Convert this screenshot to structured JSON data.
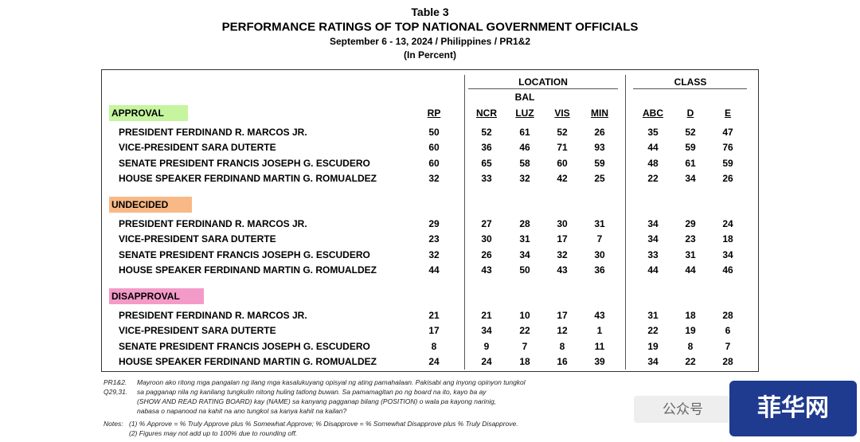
{
  "header": {
    "table_no": "Table 3",
    "title": "PERFORMANCE RATINGS OF TOP NATIONAL GOVERNMENT OFFICIALS",
    "subtitle": "September 6 - 13, 2024 / Philippines / PR1&2",
    "unit": "(In Percent)"
  },
  "table": {
    "groups": {
      "location": "LOCATION",
      "bal": "BAL",
      "class": "CLASS"
    },
    "columns": [
      "RP",
      "NCR",
      "LUZ",
      "VIS",
      "MIN",
      "ABC",
      "D",
      "E"
    ],
    "sections": [
      {
        "label": "APPROVAL",
        "rows": [
          {
            "name": "PRESIDENT FERDINAND R. MARCOS JR.",
            "values": [
              50,
              52,
              61,
              52,
              26,
              35,
              52,
              47
            ]
          },
          {
            "name": "VICE-PRESIDENT SARA DUTERTE",
            "values": [
              60,
              36,
              46,
              71,
              93,
              44,
              59,
              76
            ]
          },
          {
            "name": "SENATE PRESIDENT FRANCIS JOSEPH G. ESCUDERO",
            "values": [
              60,
              65,
              58,
              60,
              59,
              48,
              61,
              59
            ]
          },
          {
            "name": "HOUSE SPEAKER FERDINAND MARTIN G. ROMUALDEZ",
            "values": [
              32,
              33,
              32,
              42,
              25,
              22,
              34,
              26
            ]
          }
        ]
      },
      {
        "label": "UNDECIDED",
        "rows": [
          {
            "name": "PRESIDENT FERDINAND R. MARCOS JR.",
            "values": [
              29,
              27,
              28,
              30,
              31,
              34,
              29,
              24
            ]
          },
          {
            "name": "VICE-PRESIDENT SARA DUTERTE",
            "values": [
              23,
              30,
              31,
              17,
              7,
              34,
              23,
              18
            ]
          },
          {
            "name": "SENATE PRESIDENT FRANCIS JOSEPH G. ESCUDERO",
            "values": [
              32,
              26,
              34,
              32,
              30,
              33,
              31,
              34
            ]
          },
          {
            "name": "HOUSE SPEAKER FERDINAND MARTIN G. ROMUALDEZ",
            "values": [
              44,
              43,
              50,
              43,
              36,
              44,
              44,
              46
            ]
          }
        ]
      },
      {
        "label": "DISAPPROVAL",
        "rows": [
          {
            "name": "PRESIDENT FERDINAND R. MARCOS JR.",
            "values": [
              21,
              21,
              10,
              17,
              43,
              31,
              18,
              28
            ]
          },
          {
            "name": "VICE-PRESIDENT SARA DUTERTE",
            "values": [
              17,
              34,
              22,
              12,
              1,
              22,
              19,
              6
            ]
          },
          {
            "name": "SENATE PRESIDENT FRANCIS JOSEPH G. ESCUDERO",
            "values": [
              8,
              9,
              7,
              8,
              11,
              19,
              8,
              7
            ]
          },
          {
            "name": "HOUSE SPEAKER FERDINAND MARTIN G. ROMUALDEZ",
            "values": [
              24,
              24,
              18,
              16,
              39,
              34,
              22,
              28
            ]
          }
        ]
      }
    ]
  },
  "footnote": {
    "labels": [
      "PR1&2.",
      "Q29,31."
    ],
    "lines": [
      "Mayroon ako ritong mga pangalan ng ilang mga kasalukuyang opisyal ng ating pamahalaan.  Pakisabi ang inyong opinyon tungkol",
      "sa pagganap nila ng kanilang tungkulin nitong huling tatlong buwan. Sa pamamagitan po ng board na ito, kayo ba ay",
      "(SHOW AND READ RATING BOARD) kay (NAME) sa kanyang pagganap bilang (POSITION) o wala pa kayong narinig,",
      "nabasa o napanood na kahit na ano tungkol sa kanya kahit na kailan?"
    ]
  },
  "notes": {
    "label": "Notes:",
    "lines": [
      "(1) % Approve = % Truly Approve plus % Somewhat Approve; % Disapprove = % Somewhat Disapprove plus % Truly Disapprove.",
      "(2) Figures may not add up to 100% due to rounding off."
    ]
  },
  "watermark": {
    "account": "公众号",
    "brand": "菲华网"
  }
}
